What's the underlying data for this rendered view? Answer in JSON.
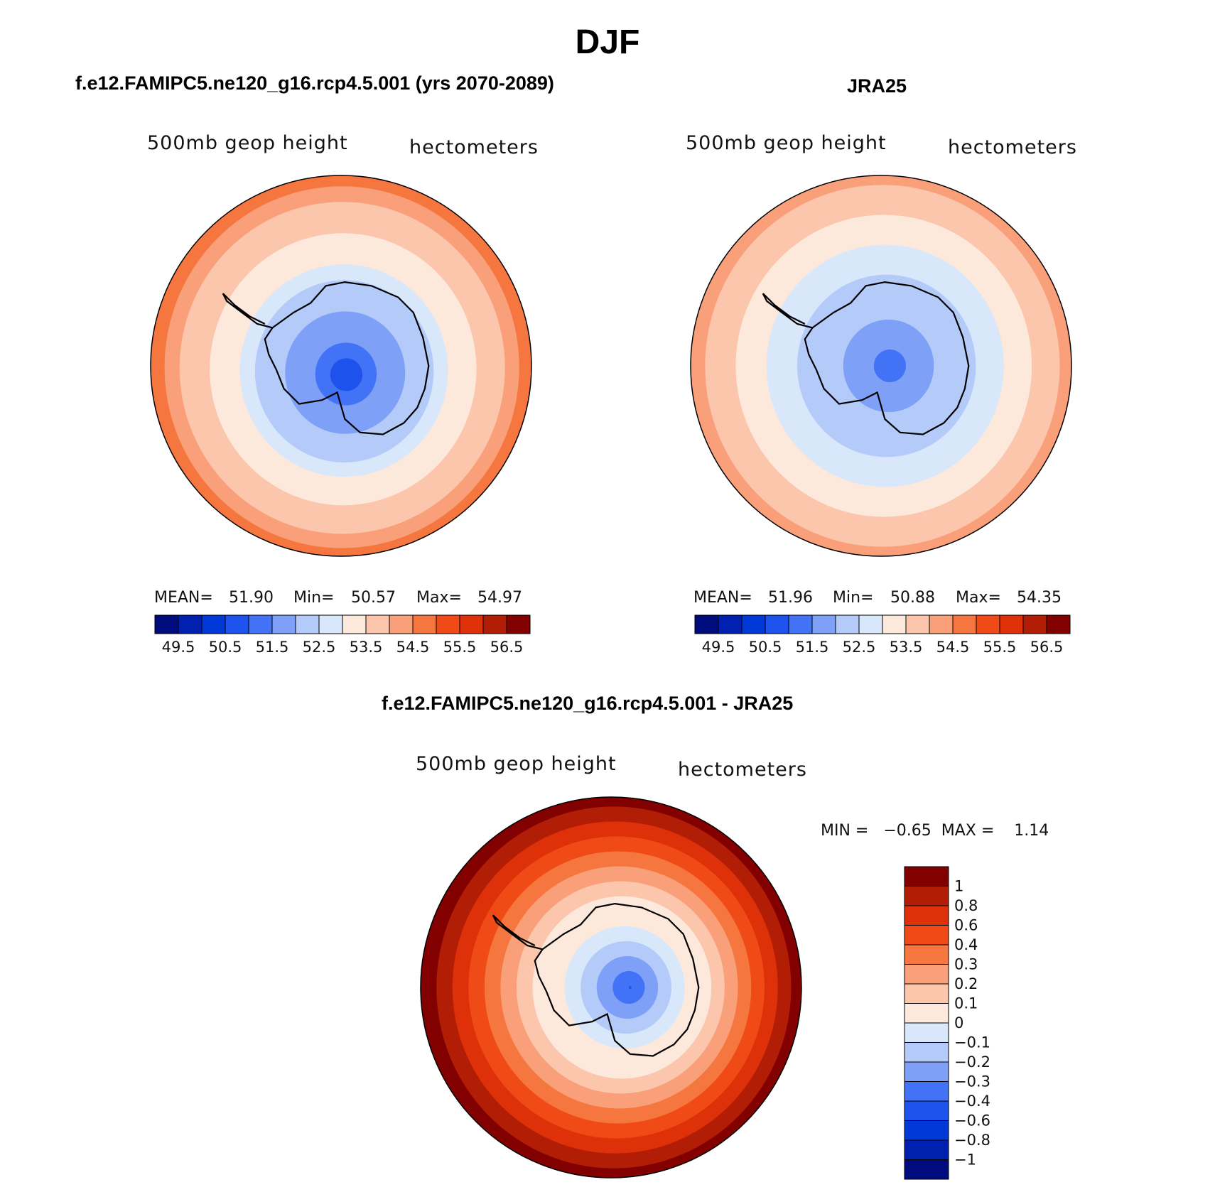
{
  "title": "DJF",
  "colors": {
    "abs": [
      "#000c7d",
      "#0020b0",
      "#0039d8",
      "#1d52ec",
      "#4272f6",
      "#7ea0f7",
      "#b4cbfa",
      "#d8e8fa",
      "#fde8dc",
      "#fcc6ac",
      "#f9a07b",
      "#f6763f",
      "#f04a16",
      "#de3009",
      "#b21e05",
      "#820000"
    ],
    "diff": [
      "#000c7d",
      "#0020b0",
      "#0039d8",
      "#1d52ec",
      "#4272f6",
      "#7ea0f7",
      "#b4cbfa",
      "#d8e8fa",
      "#fde8dc",
      "#fcc6ac",
      "#f9a07b",
      "#f6763f",
      "#f04a16",
      "#de3009",
      "#b21e05",
      "#820000"
    ]
  },
  "panels": {
    "model": {
      "title": "f.e12.FAMIPC5.ne120_g16.rcp4.5.001 (yrs 2070-2089)",
      "left_label": "500mb  geop  height",
      "right_label": "hectometers",
      "mean_label": "MEAN=",
      "mean": "51.90",
      "min_label": "Min=",
      "min": "50.57",
      "max_label": "Max=",
      "max": "54.97",
      "field": {
        "pole_value": 50.6,
        "edge_value": 54.9,
        "centroid": [
          0.03,
          0.05
        ]
      }
    },
    "obs": {
      "title": "JRA25",
      "left_label": "500mb  geop  height",
      "right_label": "hectometers",
      "mean_label": "MEAN=",
      "mean": "51.96",
      "min_label": "Min=",
      "min": "50.88",
      "max_label": "Max=",
      "max": "54.35",
      "field": {
        "pole_value": 51.1,
        "edge_value": 54.3,
        "centroid": [
          0.05,
          0.0
        ]
      }
    },
    "diff": {
      "title": "f.e12.FAMIPC5.ne120_g16.rcp4.5.001 - JRA25",
      "left_label": "500mb  geop  height",
      "right_label": "hectometers",
      "min_max_text": "MIN =   −0.65  MAX =    1.14",
      "field": {
        "pole_value": -0.6,
        "edge_value": 1.1,
        "centroid": [
          0.1,
          0.0
        ]
      }
    }
  },
  "abs_colorbar_labels": [
    "49.5",
    "50.5",
    "51.5",
    "52.5",
    "53.5",
    "54.5",
    "55.5",
    "56.5"
  ],
  "diff_colorbar_labels": [
    "1",
    "0.8",
    "0.6",
    "0.4",
    "0.3",
    "0.2",
    "0.1",
    "0",
    "−0.1",
    "−0.2",
    "−0.3",
    "−0.4",
    "−0.6",
    "−0.8",
    "−1"
  ]
}
